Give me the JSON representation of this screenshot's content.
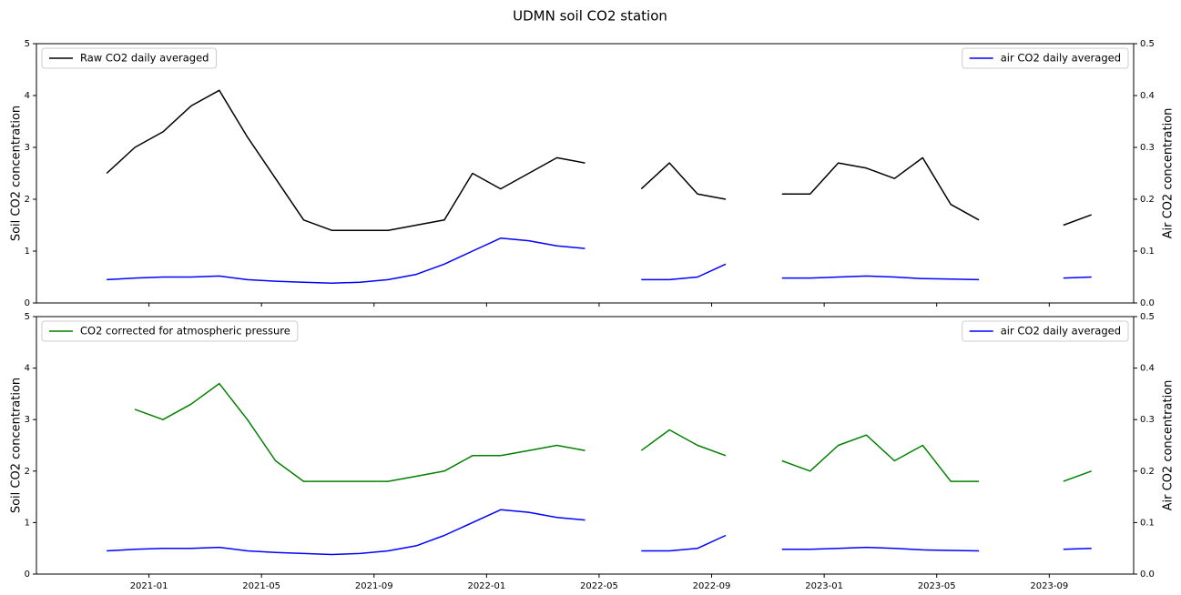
{
  "title": "UDMN soil CO2 station",
  "chart_data": [
    {
      "type": "line",
      "ylabel": "Soil CO2 concentration",
      "y2label": "Air CO2 concentration",
      "xticklabels": false,
      "x": [
        "2020-11",
        "2020-12",
        "2021-01",
        "2021-02",
        "2021-03",
        "2021-04",
        "2021-05",
        "2021-06",
        "2021-07",
        "2021-08",
        "2021-09",
        "2021-10",
        "2021-11",
        "2021-12",
        "2022-01",
        "2022-02",
        "2022-03",
        "2022-04",
        "2022-05",
        "2022-06",
        "2022-07",
        "2022-08",
        "2022-09",
        "2022-10",
        "2022-11",
        "2022-12",
        "2023-01",
        "2023-02",
        "2023-03",
        "2023-04",
        "2023-05",
        "2023-06",
        "2023-07",
        "2023-08",
        "2023-09",
        "2023-10"
      ],
      "xlim": [
        "2020-09",
        "2023-12"
      ],
      "xticks": [
        "2021-01",
        "2021-05",
        "2021-09",
        "2022-01",
        "2022-05",
        "2022-09",
        "2023-01",
        "2023-05",
        "2023-09"
      ],
      "ylim": [
        0,
        5
      ],
      "yticks": [
        0,
        1,
        2,
        3,
        4,
        5
      ],
      "y2lim": [
        0,
        0.5
      ],
      "y2ticks": [
        {
          "value": 0,
          "label": "0.0"
        },
        0.1,
        0.2,
        0.3,
        0.4,
        0.5
      ],
      "series": [
        {
          "name": "Raw CO2 daily averaged",
          "color": "#000000",
          "legend": "upper left",
          "values": [
            2.5,
            3.0,
            3.3,
            3.8,
            4.1,
            3.2,
            2.4,
            1.6,
            1.4,
            1.4,
            1.4,
            1.5,
            1.6,
            2.5,
            2.2,
            2.5,
            2.8,
            2.7,
            null,
            2.2,
            2.7,
            2.1,
            2.0,
            null,
            2.1,
            2.1,
            2.7,
            2.6,
            2.4,
            2.8,
            1.9,
            1.6,
            null,
            null,
            1.5,
            1.7
          ]
        },
        {
          "name": "air CO2 daily averaged",
          "color": "#0000ff",
          "legend": "upper right",
          "axis": "y2",
          "values": [
            0.045,
            0.048,
            0.05,
            0.05,
            0.052,
            0.045,
            0.042,
            0.04,
            0.038,
            0.04,
            0.045,
            0.055,
            0.075,
            0.1,
            0.125,
            0.12,
            0.11,
            0.105,
            null,
            0.045,
            0.045,
            0.05,
            0.075,
            null,
            0.048,
            0.048,
            0.05,
            0.052,
            0.05,
            0.047,
            0.046,
            0.045,
            null,
            null,
            0.048,
            0.05
          ]
        }
      ]
    },
    {
      "type": "line",
      "ylabel": "Soil CO2 concentration",
      "y2label": "Air CO2 concentration",
      "x": [
        "2020-11",
        "2020-12",
        "2021-01",
        "2021-02",
        "2021-03",
        "2021-04",
        "2021-05",
        "2021-06",
        "2021-07",
        "2021-08",
        "2021-09",
        "2021-10",
        "2021-11",
        "2021-12",
        "2022-01",
        "2022-02",
        "2022-03",
        "2022-04",
        "2022-05",
        "2022-06",
        "2022-07",
        "2022-08",
        "2022-09",
        "2022-10",
        "2022-11",
        "2022-12",
        "2023-01",
        "2023-02",
        "2023-03",
        "2023-04",
        "2023-05",
        "2023-06",
        "2023-07",
        "2023-08",
        "2023-09",
        "2023-10"
      ],
      "xlim": [
        "2020-09",
        "2023-12"
      ],
      "xticks": [
        "2021-01",
        "2021-05",
        "2021-09",
        "2022-01",
        "2022-05",
        "2022-09",
        "2023-01",
        "2023-05",
        "2023-09"
      ],
      "ylim": [
        0,
        5
      ],
      "yticks": [
        0,
        1,
        2,
        3,
        4,
        5
      ],
      "y2lim": [
        0,
        0.5
      ],
      "y2ticks": [
        {
          "value": 0,
          "label": "0.0"
        },
        0.1,
        0.2,
        0.3,
        0.4,
        0.5
      ],
      "series": [
        {
          "name": "CO2 corrected for atmospheric pressure",
          "color": "#008000",
          "legend": "upper left",
          "values": [
            null,
            3.2,
            3.0,
            3.3,
            3.7,
            3.0,
            2.2,
            1.8,
            1.8,
            1.8,
            1.8,
            1.9,
            2.0,
            2.3,
            2.3,
            2.4,
            2.5,
            2.4,
            null,
            2.4,
            2.8,
            2.5,
            2.3,
            null,
            2.2,
            2.0,
            2.5,
            2.7,
            2.2,
            2.5,
            1.8,
            1.8,
            null,
            null,
            1.8,
            2.0
          ]
        },
        {
          "name": "air CO2 daily averaged",
          "color": "#0000ff",
          "legend": "upper right",
          "axis": "y2",
          "values": [
            0.045,
            0.048,
            0.05,
            0.05,
            0.052,
            0.045,
            0.042,
            0.04,
            0.038,
            0.04,
            0.045,
            0.055,
            0.075,
            0.1,
            0.125,
            0.12,
            0.11,
            0.105,
            null,
            0.045,
            0.045,
            0.05,
            0.075,
            null,
            0.048,
            0.048,
            0.05,
            0.052,
            0.05,
            0.047,
            0.046,
            0.045,
            null,
            null,
            0.048,
            0.05
          ]
        }
      ]
    }
  ]
}
